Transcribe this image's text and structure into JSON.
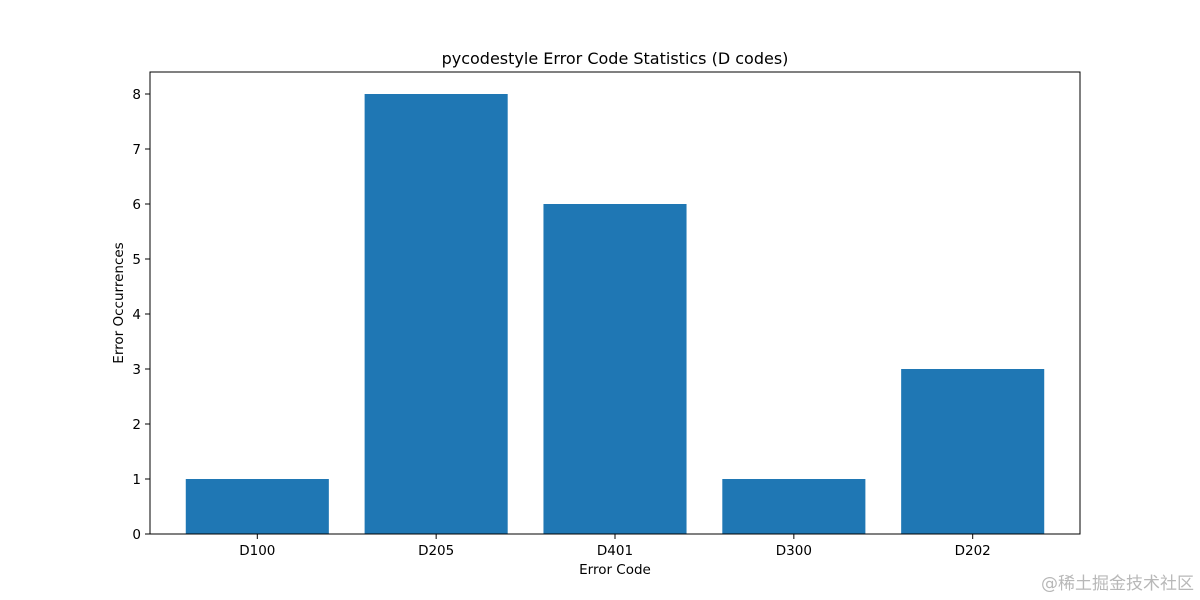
{
  "chart_data": {
    "type": "bar",
    "title": "pycodestyle Error Code Statistics (D codes)",
    "xlabel": "Error Code",
    "ylabel": "Error Occurrences",
    "categories": [
      "D100",
      "D205",
      "D401",
      "D300",
      "D202"
    ],
    "values": [
      1,
      8,
      6,
      1,
      3
    ],
    "ylim": [
      0,
      8.4
    ],
    "yticks": [
      0,
      1,
      2,
      3,
      4,
      5,
      6,
      7,
      8
    ],
    "bar_color": "#1f77b4",
    "grid": false,
    "legend": "none"
  },
  "watermark": "@稀土掘金技术社区"
}
